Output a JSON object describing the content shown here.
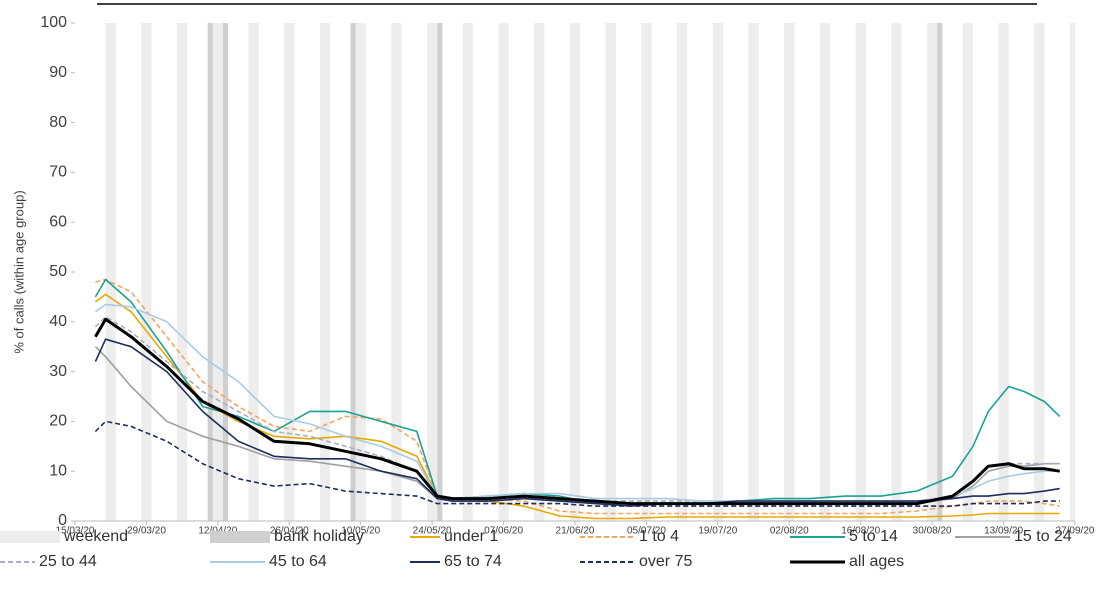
{
  "chart_data": {
    "type": "line",
    "y_axis_label": "% of calls (within age group)",
    "weekend_label": "weekend",
    "bank_holiday_label": "bank holiday",
    "bank_holidays": [
      "10/04/20",
      "13/04/20",
      "08/05/20",
      "25/05/20",
      "31/08/20"
    ],
    "xlim": [
      "15/03/20",
      "27/09/20"
    ],
    "xticks": [
      "15/03/20",
      "29/03/20",
      "12/04/20",
      "26/04/20",
      "10/05/20",
      "24/05/20",
      "07/06/20",
      "21/06/20",
      "05/07/20",
      "19/07/20",
      "02/08/20",
      "16/08/20",
      "30/08/20",
      "13/09/20",
      "27/09/20"
    ],
    "ylim": [
      0,
      100
    ],
    "yticks": [
      0,
      10,
      20,
      30,
      40,
      50,
      60,
      70,
      80,
      90,
      100
    ],
    "grid": false,
    "x": [
      "19/03/20",
      "21/03/20",
      "26/03/20",
      "02/04/20",
      "09/04/20",
      "16/04/20",
      "23/04/20",
      "30/04/20",
      "07/05/20",
      "14/05/20",
      "21/05/20",
      "25/05/20",
      "28/05/20",
      "04/06/20",
      "11/06/20",
      "18/06/20",
      "25/06/20",
      "02/07/20",
      "09/07/20",
      "16/07/20",
      "23/07/20",
      "30/07/20",
      "06/08/20",
      "13/08/20",
      "20/08/20",
      "27/08/20",
      "03/09/20",
      "07/09/20",
      "10/09/20",
      "14/09/20",
      "17/09/20",
      "21/09/20",
      "24/09/20"
    ],
    "series": [
      {
        "name": "under 1",
        "color": "#e8a800",
        "dashed": false,
        "values": [
          44,
          45.5,
          42,
          33,
          24,
          20,
          17,
          16.5,
          17,
          16,
          13,
          5,
          4.5,
          4,
          3,
          1,
          0.5,
          0.5,
          0.8,
          0.8,
          0.8,
          0.8,
          0.8,
          0.8,
          0.8,
          0.8,
          1,
          1.2,
          1.5,
          1.5,
          1.5,
          1.5,
          1.5
        ]
      },
      {
        "name": "1 to 4",
        "color": "#f4a460",
        "dashed": true,
        "values": [
          48,
          48.5,
          46,
          37,
          28,
          23,
          19,
          18,
          21,
          20.5,
          16,
          5,
          4.5,
          4.5,
          4,
          2,
          1.5,
          1.5,
          1.5,
          1.5,
          1.5,
          1.5,
          1.5,
          1.5,
          1.5,
          2,
          3,
          3.5,
          4,
          4,
          4,
          3.5,
          3
        ]
      },
      {
        "name": "5 to 14",
        "color": "#1aa391",
        "dashed": false,
        "values": [
          45,
          48.5,
          44,
          34,
          23,
          21,
          18,
          22,
          22,
          20,
          18,
          5,
          4.5,
          5,
          5.5,
          5,
          3.5,
          3.5,
          3.5,
          3.5,
          4,
          4.5,
          4.5,
          5,
          5,
          6,
          9,
          15,
          22,
          27,
          26,
          24,
          21
        ]
      },
      {
        "name": "15 to 24",
        "color": "#a0a0a0",
        "dashed": false,
        "values": [
          35,
          33,
          27,
          20,
          17,
          15,
          12.5,
          12,
          11,
          10,
          8,
          4.5,
          4,
          4,
          4.5,
          4,
          3.5,
          3.5,
          3.5,
          3.5,
          3.5,
          3.5,
          3.5,
          3.5,
          3.5,
          3.5,
          4.5,
          7,
          10,
          11,
          11,
          11.5,
          11.5
        ]
      },
      {
        "name": "25 to 44",
        "color": "#a6aebf",
        "dashed": true,
        "values": [
          39,
          41,
          38,
          32,
          26,
          22,
          18,
          17,
          15,
          13,
          10,
          5,
          4.5,
          4.5,
          5,
          4.5,
          4,
          4,
          4,
          4,
          4,
          4,
          4,
          4,
          4,
          4,
          5,
          8,
          11,
          11.5,
          11.5,
          11.5,
          11.5
        ]
      },
      {
        "name": "45 to 64",
        "color": "#a9cce3",
        "dashed": false,
        "values": [
          42,
          43.5,
          43,
          40,
          33,
          28,
          21,
          19.5,
          17,
          15,
          12,
          5,
          4.5,
          5,
          5.5,
          5.5,
          4.5,
          4.5,
          4.5,
          4,
          4,
          4,
          4,
          4,
          4,
          4,
          5,
          6.5,
          8,
          9,
          9.5,
          10,
          10
        ]
      },
      {
        "name": "65 to 74",
        "color": "#1f2d5c",
        "dashed": false,
        "values": [
          32,
          36.5,
          35,
          30,
          22,
          16,
          13,
          12.5,
          12.5,
          10,
          8.5,
          4.5,
          4,
          4,
          4.5,
          4,
          3.5,
          3,
          3.5,
          3.5,
          4,
          4,
          4,
          4,
          4,
          4,
          4.5,
          5,
          5,
          5.5,
          5.5,
          6,
          6.5
        ]
      },
      {
        "name": "over 75",
        "color": "#1f2d5c",
        "dashed": true,
        "values": [
          18,
          20,
          19,
          16,
          11.5,
          8.5,
          7,
          7.5,
          6,
          5.5,
          5,
          3.5,
          3.5,
          3.5,
          3.5,
          3.5,
          3,
          3,
          3,
          3,
          3,
          3,
          3,
          3,
          3,
          3,
          3,
          3.5,
          3.5,
          3.5,
          3.5,
          4,
          4
        ]
      },
      {
        "name": "all ages",
        "color": "#000000",
        "dashed": false,
        "values": [
          37,
          40.5,
          37,
          31,
          24,
          20.5,
          16,
          15.5,
          14,
          12.5,
          10,
          5,
          4.5,
          4.5,
          5,
          4.5,
          4,
          3.5,
          3.5,
          3.5,
          3.5,
          3.5,
          3.5,
          3.5,
          3.5,
          3.5,
          5,
          8,
          11,
          11.5,
          10.5,
          10.5,
          10
        ]
      }
    ]
  }
}
